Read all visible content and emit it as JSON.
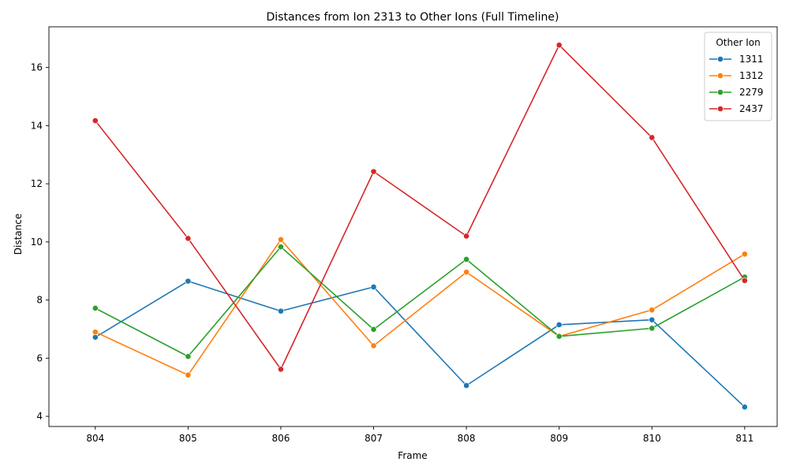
{
  "chart_data": {
    "type": "line",
    "title": "Distances from Ion 2313 to Other Ions (Full Timeline)",
    "xlabel": "Frame",
    "ylabel": "Distance",
    "x": [
      804,
      805,
      806,
      807,
      808,
      809,
      810,
      811
    ],
    "xlim": [
      803.5,
      811.35
    ],
    "ylim": [
      3.65,
      17.4
    ],
    "yticks": [
      4,
      6,
      8,
      10,
      12,
      14,
      16
    ],
    "grid": false,
    "legend": {
      "title": "Other Ion",
      "placement": "top-right"
    },
    "series": [
      {
        "name": "1311",
        "color": "#1f77b4",
        "values": [
          6.72,
          8.65,
          7.62,
          8.45,
          5.06,
          7.15,
          7.32,
          4.32
        ]
      },
      {
        "name": "1312",
        "color": "#ff7f0e",
        "values": [
          6.9,
          5.42,
          10.08,
          6.43,
          8.96,
          6.75,
          7.66,
          9.58
        ]
      },
      {
        "name": "2279",
        "color": "#2ca02c",
        "values": [
          7.72,
          6.06,
          9.83,
          6.99,
          9.4,
          6.75,
          7.03,
          8.79
        ]
      },
      {
        "name": "2437",
        "color": "#d62728",
        "values": [
          14.17,
          10.12,
          5.62,
          12.42,
          10.2,
          16.77,
          13.59,
          8.67
        ]
      }
    ]
  }
}
